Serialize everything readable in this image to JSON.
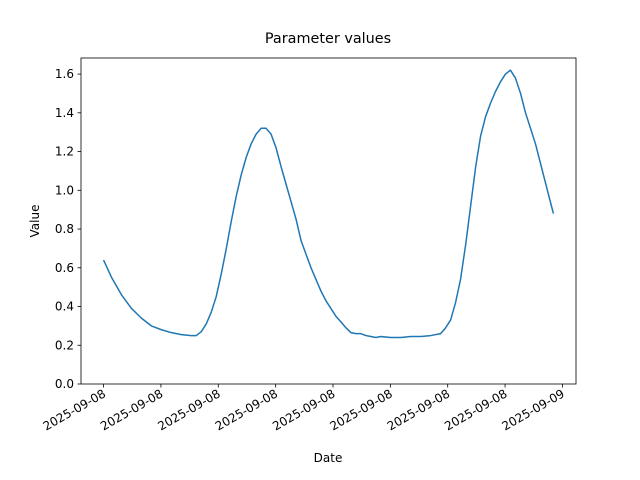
{
  "chart_data": {
    "type": "line",
    "title": "Parameter values",
    "x_label": "Date",
    "y_label": "Value",
    "x": [
      0,
      0.42,
      0.94,
      1.46,
      1.98,
      2.5,
      3.03,
      3.55,
      4.07,
      4.59,
      4.85,
      5.11,
      5.37,
      5.63,
      5.89,
      6.16,
      6.42,
      6.68,
      6.94,
      7.2,
      7.46,
      7.72,
      7.98,
      8.24,
      8.5,
      8.76,
      9.02,
      9.29,
      9.55,
      9.81,
      10.07,
      10.33,
      10.59,
      10.85,
      11.11,
      11.37,
      11.63,
      11.89,
      12.15,
      12.42,
      12.68,
      12.94,
      13.2,
      13.46,
      13.72,
      13.98,
      14.24,
      14.5,
      15.02,
      15.55,
      16.07,
      16.59,
      17.11,
      17.63,
      17.89,
      18.15,
      18.41,
      18.67,
      18.94,
      19.2,
      19.46,
      19.72,
      19.98,
      20.24,
      20.5,
      20.76,
      21.02,
      21.28,
      21.54,
      21.81,
      22.07,
      22.33,
      22.59,
      22.85,
      23.11,
      23.37,
      23.53
    ],
    "series": [
      {
        "name": "Value",
        "color": "#1f77b4",
        "values": [
          0.64,
          0.55,
          0.46,
          0.39,
          0.34,
          0.3,
          0.28,
          0.265,
          0.255,
          0.25,
          0.25,
          0.27,
          0.31,
          0.37,
          0.45,
          0.57,
          0.7,
          0.84,
          0.97,
          1.08,
          1.17,
          1.24,
          1.29,
          1.32,
          1.32,
          1.29,
          1.22,
          1.12,
          1.03,
          0.94,
          0.85,
          0.74,
          0.67,
          0.6,
          0.54,
          0.48,
          0.43,
          0.39,
          0.35,
          0.32,
          0.29,
          0.265,
          0.26,
          0.26,
          0.25,
          0.245,
          0.24,
          0.245,
          0.24,
          0.24,
          0.245,
          0.245,
          0.25,
          0.26,
          0.29,
          0.33,
          0.42,
          0.54,
          0.72,
          0.92,
          1.12,
          1.28,
          1.38,
          1.45,
          1.51,
          1.56,
          1.6,
          1.62,
          1.58,
          1.5,
          1.4,
          1.32,
          1.24,
          1.14,
          1.04,
          0.94,
          0.88
        ]
      }
    ],
    "xlim": [
      -1.18,
      24.71
    ],
    "xticks": [
      {
        "value": 0,
        "label": "2025-09-08"
      },
      {
        "value": 3,
        "label": "2025-09-08"
      },
      {
        "value": 6,
        "label": "2025-09-08"
      },
      {
        "value": 9,
        "label": "2025-09-08"
      },
      {
        "value": 12,
        "label": "2025-09-08"
      },
      {
        "value": 15,
        "label": "2025-09-08"
      },
      {
        "value": 18,
        "label": "2025-09-08"
      },
      {
        "value": 21,
        "label": "2025-09-08"
      },
      {
        "value": 24,
        "label": "2025-09-09"
      }
    ],
    "ylim": [
      0,
      1.683
    ],
    "yticks": [
      {
        "value": 0,
        "label": "0.0"
      },
      0.2,
      0.4,
      0.6,
      0.8,
      {
        "value": 1,
        "label": "1.0"
      },
      1.2,
      1.4,
      1.6
    ]
  }
}
